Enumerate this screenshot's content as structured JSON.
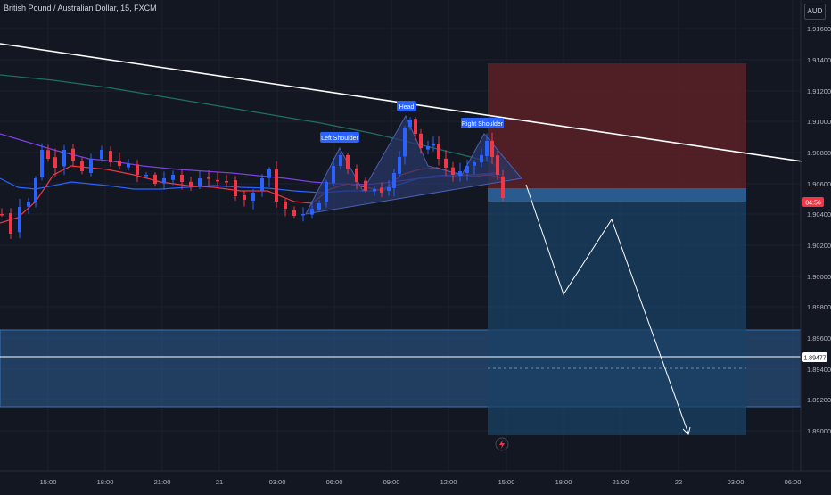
{
  "header": {
    "symbol_title": "British Pound / Australian Dollar, 15, FXCM",
    "currency_button": "AUD"
  },
  "price_axis": {
    "labels": [
      "1.91600",
      "1.91400",
      "1.91200",
      "1.91000",
      "1.90800",
      "1.90600",
      "1.90400",
      "1.90200",
      "1.90000",
      "1.89800",
      "1.89600",
      "1.89400",
      "1.89200",
      "1.89000"
    ],
    "current_price_label": "04:56",
    "line_price_label": "1.89477"
  },
  "time_axis": {
    "labels": [
      "15:00",
      "18:00",
      "21:00",
      "21",
      "03:00",
      "06:00",
      "09:00",
      "12:00",
      "15:00",
      "18:00",
      "21:00",
      "22",
      "03:00",
      "06:00"
    ]
  },
  "pattern_labels": {
    "left_shoulder": "Left Shoulder",
    "head": "Head",
    "right_shoulder": "Right Shoulder"
  },
  "colors": {
    "background": "#131722",
    "up_candle": "#2962ff",
    "down_candle": "#f23645",
    "trendline": "#ffffff",
    "stop_zone": "#5b2126",
    "target_zone": "#1a4266",
    "support_zone": "#2e5d94",
    "pattern_fill": "#2a3766",
    "ma_green": "#1e6e63",
    "ma_blue": "#2962ff",
    "ma_red": "#f23645",
    "ma_purple": "#7b3fe4",
    "label_bg": "#2962ff"
  },
  "icons": {
    "alert": "lightning-bolt-icon"
  }
}
